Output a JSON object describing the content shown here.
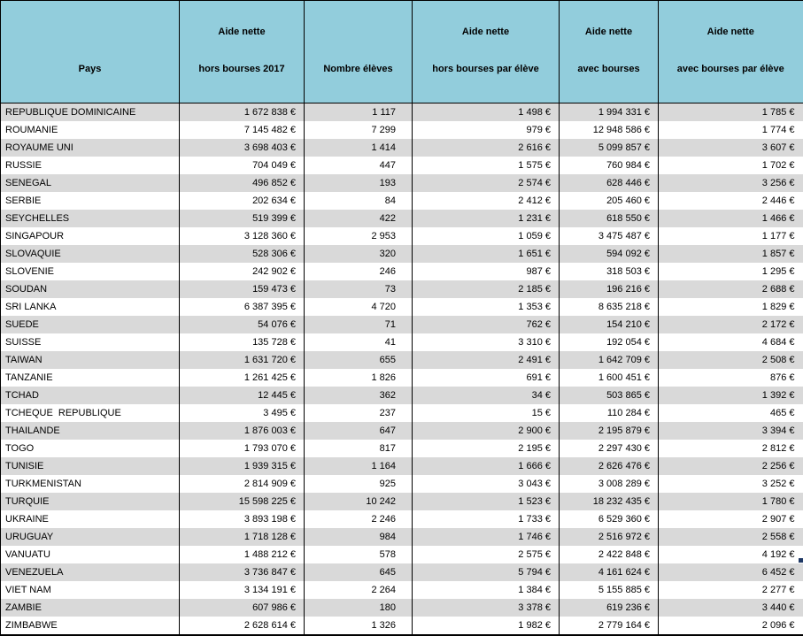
{
  "table": {
    "columns": [
      {
        "id": "pays",
        "line1": "",
        "line2": "Pays"
      },
      {
        "id": "aide-nette-hors-bourses-2017",
        "line1": "Aide nette",
        "line2": "hors bourses 2017"
      },
      {
        "id": "nombre-eleves",
        "line1": "",
        "line2": "Nombre élèves"
      },
      {
        "id": "aide-nette-hors-bourses-par-eleve",
        "line1": "Aide nette",
        "line2": "hors bourses par élève"
      },
      {
        "id": "aide-nette-avec-bourses",
        "line1": "Aide nette",
        "line2": "avec bourses"
      },
      {
        "id": "aide-nette-avec-bourses-par-eleve",
        "line1": "Aide nette",
        "line2": "avec bourses par élève"
      }
    ],
    "rows": [
      [
        "REPUBLIQUE DOMINICAINE",
        "1 672 838 €",
        "1 117",
        "1 498 €",
        "1 994 331 €",
        "1 785 €"
      ],
      [
        "ROUMANIE",
        "7 145 482 €",
        "7 299",
        "979 €",
        "12 948 586 €",
        "1 774 €"
      ],
      [
        "ROYAUME UNI",
        "3 698 403 €",
        "1 414",
        "2 616 €",
        "5 099 857 €",
        "3 607 €"
      ],
      [
        "RUSSIE",
        "704 049 €",
        "447",
        "1 575 €",
        "760 984 €",
        "1 702 €"
      ],
      [
        "SENEGAL",
        "496 852 €",
        "193",
        "2 574 €",
        "628 446 €",
        "3 256 €"
      ],
      [
        "SERBIE",
        "202 634 €",
        "84",
        "2 412 €",
        "205 460 €",
        "2 446 €"
      ],
      [
        "SEYCHELLES",
        "519 399 €",
        "422",
        "1 231 €",
        "618 550 €",
        "1 466 €"
      ],
      [
        "SINGAPOUR",
        "3 128 360 €",
        "2 953",
        "1 059 €",
        "3 475 487 €",
        "1 177 €"
      ],
      [
        "SLOVAQUIE",
        "528 306 €",
        "320",
        "1 651 €",
        "594 092 €",
        "1 857 €"
      ],
      [
        "SLOVENIE",
        "242 902 €",
        "246",
        "987 €",
        "318 503 €",
        "1 295 €"
      ],
      [
        "SOUDAN",
        "159 473 €",
        "73",
        "2 185 €",
        "196 216 €",
        "2 688 €"
      ],
      [
        "SRI LANKA",
        "6 387 395 €",
        "4 720",
        "1 353 €",
        "8 635 218 €",
        "1 829 €"
      ],
      [
        "SUEDE",
        "54 076 €",
        "71",
        "762 €",
        "154 210 €",
        "2 172 €"
      ],
      [
        "SUISSE",
        "135 728 €",
        "41",
        "3 310 €",
        "192 054 €",
        "4 684 €"
      ],
      [
        "TAIWAN",
        "1 631 720 €",
        "655",
        "2 491 €",
        "1 642 709 €",
        "2 508 €"
      ],
      [
        "TANZANIE",
        "1 261 425 €",
        "1 826",
        "691 €",
        "1 600 451 €",
        "876 €"
      ],
      [
        "TCHAD",
        "12 445 €",
        "362",
        "34 €",
        "503 865 €",
        "1 392 €"
      ],
      [
        "TCHEQUE  REPUBLIQUE",
        "3 495 €",
        "237",
        "15 €",
        "110 284 €",
        "465 €"
      ],
      [
        "THAILANDE",
        "1 876 003 €",
        "647",
        "2 900 €",
        "2 195 879 €",
        "3 394 €"
      ],
      [
        "TOGO",
        "1 793 070 €",
        "817",
        "2 195 €",
        "2 297 430 €",
        "2 812 €"
      ],
      [
        "TUNISIE",
        "1 939 315 €",
        "1 164",
        "1 666 €",
        "2 626 476 €",
        "2 256 €"
      ],
      [
        "TURKMENISTAN",
        "2 814 909 €",
        "925",
        "3 043 €",
        "3 008 289 €",
        "3 252 €"
      ],
      [
        "TURQUIE",
        "15 598 225 €",
        "10 242",
        "1 523 €",
        "18 232 435 €",
        "1 780 €"
      ],
      [
        "UKRAINE",
        "3 893 198 €",
        "2 246",
        "1 733 €",
        "6 529 360 €",
        "2 907 €"
      ],
      [
        "URUGUAY",
        "1 718 128 €",
        "984",
        "1 746 €",
        "2 516 972 €",
        "2 558 €"
      ],
      [
        "VANUATU",
        "1 488 212 €",
        "578",
        "2 575 €",
        "2 422 848 €",
        "4 192 €"
      ],
      [
        "VENEZUELA",
        "3 736 847 €",
        "645",
        "5 794 €",
        "4 161 624 €",
        "6 452 €"
      ],
      [
        "VIET NAM",
        "3 134 191 €",
        "2 264",
        "1 384 €",
        "5 155 885 €",
        "2 277 €"
      ],
      [
        "ZAMBIE",
        "607 986 €",
        "180",
        "3 378 €",
        "619 236 €",
        "3 440 €"
      ],
      [
        "ZIMBABWE",
        "2 628 614 €",
        "1 326",
        "1 982 €",
        "2 779 164 €",
        "2 096 €"
      ]
    ]
  },
  "colors": {
    "header_bg": "#92CDDC",
    "band_bg": "#D9D9D9",
    "row_bg": "#FFFFFF",
    "border": "#000000",
    "selection_handle": "#1F3864",
    "text": "#000000"
  }
}
